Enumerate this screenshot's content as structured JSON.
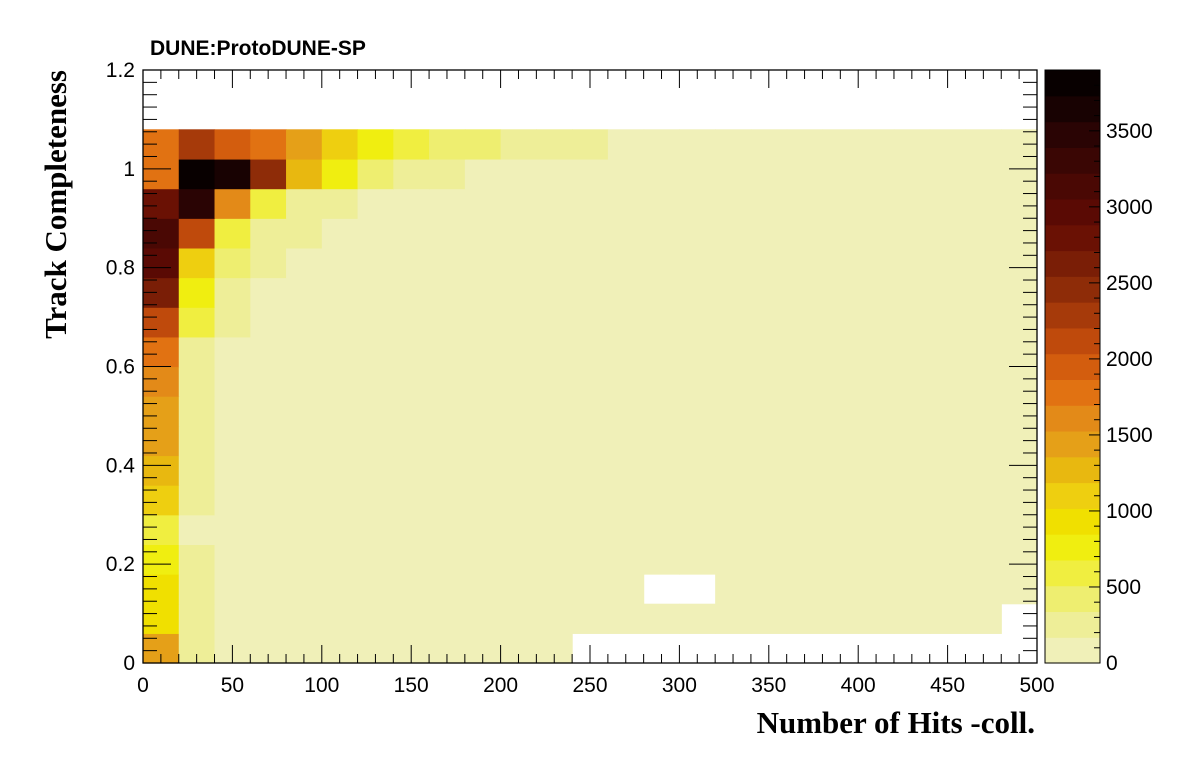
{
  "chart_data": {
    "type": "heatmap",
    "title": "DUNE:ProtoDUNE-SP",
    "xlabel": "Number of Hits -coll.",
    "ylabel": "Track Completeness",
    "xlim": [
      0,
      500
    ],
    "ylim": [
      0,
      1.2
    ],
    "x_bin_width": 20,
    "y_bin_width": 0.06,
    "x_ticks": [
      "0",
      "50",
      "100",
      "150",
      "200",
      "250",
      "300",
      "350",
      "400",
      "450",
      "500"
    ],
    "y_ticks": [
      "0",
      "0.2",
      "0.4",
      "0.6",
      "0.8",
      "1",
      "1.2"
    ],
    "colorbar": {
      "zlim": [
        0,
        3900
      ],
      "ticks": [
        "0",
        "500",
        "1000",
        "1500",
        "2000",
        "2500",
        "3000",
        "3500"
      ],
      "palette": [
        "#f0f0b8",
        "#eeee98",
        "#eeee70",
        "#f0ee40",
        "#f0ee10",
        "#f0e000",
        "#eecf10",
        "#e8b810",
        "#e5a018",
        "#e38a18",
        "#e17212",
        "#d35d0e",
        "#bf4a0c",
        "#a63a0a",
        "#8e2c08",
        "#7a1e06",
        "#6a1104",
        "#5a0a04",
        "#4a0804",
        "#3a0604",
        "#2a0404",
        "#180202",
        "#080000"
      ]
    },
    "rows": [
      [
        1400,
        220,
        150,
        150,
        150,
        150,
        150,
        150,
        150,
        150,
        150,
        150,
        0,
        0,
        0,
        0,
        0,
        0,
        0,
        0,
        0,
        0,
        0,
        0,
        0
      ],
      [
        900,
        220,
        150,
        150,
        150,
        150,
        150,
        150,
        150,
        150,
        150,
        150,
        150,
        150,
        150,
        150,
        150,
        150,
        150,
        150,
        150,
        150,
        150,
        150,
        0
      ],
      [
        850,
        300,
        150,
        150,
        150,
        150,
        150,
        150,
        150,
        150,
        150,
        150,
        150,
        150,
        0,
        0,
        150,
        150,
        150,
        150,
        150,
        150,
        150,
        150,
        150
      ],
      [
        750,
        220,
        150,
        150,
        150,
        150,
        150,
        150,
        150,
        150,
        150,
        150,
        150,
        150,
        150,
        150,
        150,
        150,
        150,
        150,
        150,
        150,
        150,
        150,
        150
      ],
      [
        650,
        150,
        150,
        150,
        150,
        150,
        150,
        150,
        150,
        150,
        150,
        150,
        150,
        150,
        150,
        150,
        150,
        150,
        150,
        150,
        150,
        150,
        150,
        150,
        150
      ],
      [
        1100,
        220,
        150,
        150,
        150,
        150,
        150,
        150,
        150,
        150,
        150,
        150,
        150,
        150,
        150,
        150,
        150,
        150,
        150,
        150,
        150,
        150,
        150,
        150,
        150
      ],
      [
        1300,
        220,
        150,
        150,
        150,
        150,
        150,
        150,
        150,
        150,
        150,
        150,
        150,
        150,
        150,
        150,
        150,
        150,
        150,
        150,
        150,
        150,
        150,
        150,
        150
      ],
      [
        1400,
        220,
        150,
        150,
        150,
        150,
        150,
        150,
        150,
        150,
        150,
        150,
        150,
        150,
        150,
        150,
        150,
        150,
        150,
        150,
        150,
        150,
        150,
        150,
        150
      ],
      [
        1500,
        220,
        150,
        150,
        150,
        150,
        150,
        150,
        150,
        150,
        150,
        150,
        150,
        150,
        150,
        150,
        150,
        150,
        150,
        150,
        150,
        150,
        150,
        150,
        150
      ],
      [
        1600,
        220,
        150,
        150,
        150,
        150,
        150,
        150,
        150,
        150,
        150,
        150,
        150,
        150,
        150,
        150,
        150,
        150,
        150,
        150,
        150,
        150,
        150,
        150,
        150
      ],
      [
        1800,
        220,
        150,
        150,
        150,
        150,
        150,
        150,
        150,
        150,
        150,
        150,
        150,
        150,
        150,
        150,
        150,
        150,
        150,
        150,
        150,
        150,
        150,
        150,
        150
      ],
      [
        2100,
        550,
        220,
        150,
        150,
        150,
        150,
        150,
        150,
        150,
        150,
        150,
        150,
        150,
        150,
        150,
        150,
        150,
        150,
        150,
        150,
        150,
        150,
        150,
        150
      ],
      [
        2700,
        700,
        300,
        150,
        150,
        150,
        150,
        150,
        150,
        150,
        150,
        150,
        150,
        150,
        150,
        150,
        150,
        150,
        150,
        150,
        150,
        150,
        150,
        150,
        150
      ],
      [
        3000,
        1100,
        400,
        300,
        150,
        150,
        150,
        150,
        150,
        150,
        150,
        150,
        150,
        150,
        150,
        150,
        150,
        150,
        150,
        150,
        150,
        150,
        150,
        150,
        150
      ],
      [
        3200,
        2200,
        550,
        300,
        300,
        150,
        150,
        150,
        150,
        150,
        150,
        150,
        150,
        150,
        150,
        150,
        150,
        150,
        150,
        150,
        150,
        150,
        150,
        150,
        150
      ],
      [
        2800,
        3400,
        1600,
        650,
        300,
        300,
        150,
        150,
        150,
        150,
        150,
        150,
        150,
        150,
        150,
        150,
        150,
        150,
        150,
        150,
        150,
        150,
        150,
        150,
        150
      ],
      [
        1700,
        3800,
        3600,
        2400,
        1300,
        800,
        400,
        300,
        300,
        150,
        150,
        150,
        150,
        150,
        150,
        150,
        150,
        150,
        150,
        150,
        150,
        150,
        150,
        150,
        150
      ],
      [
        1700,
        2300,
        1900,
        1700,
        1400,
        1100,
        750,
        550,
        350,
        350,
        300,
        300,
        300,
        150,
        150,
        150,
        150,
        150,
        150,
        150,
        150,
        150,
        150,
        150,
        150
      ]
    ]
  }
}
